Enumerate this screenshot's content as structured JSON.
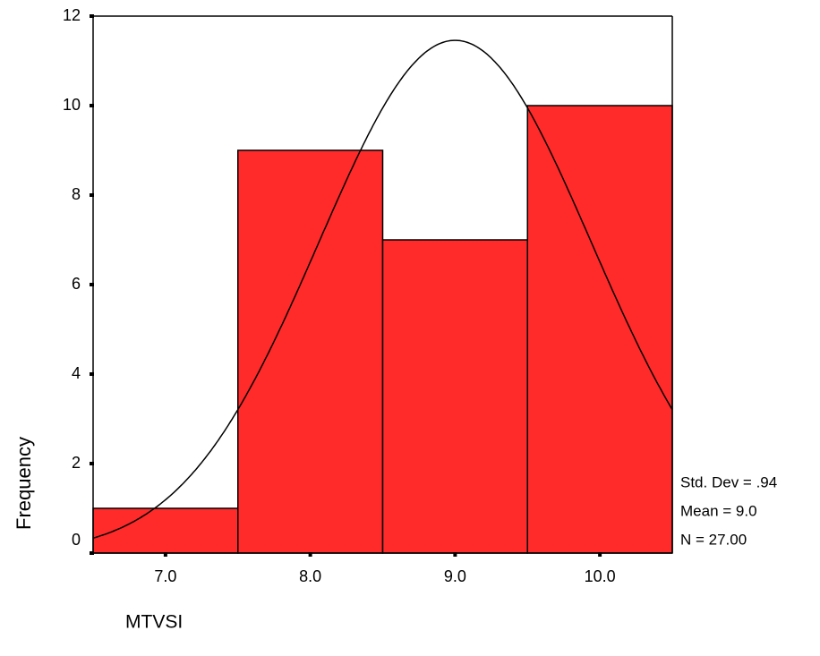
{
  "chart_data": {
    "type": "histogram",
    "x_label": "MTVSI",
    "y_label": "Frequency",
    "bins": [
      6.5,
      7.5,
      8.5,
      9.5,
      10.5
    ],
    "values": [
      1,
      9,
      7,
      10
    ],
    "color": "#ff2a2a",
    "xlim": [
      6.5,
      10.5
    ],
    "xticks": [
      {
        "value": 7,
        "label": "7.0"
      },
      {
        "value": 8,
        "label": "8.0"
      },
      {
        "value": 9,
        "label": "9.0"
      },
      {
        "value": 10,
        "label": "10.0"
      }
    ],
    "ylim": [
      0,
      12
    ],
    "yticks": [
      0,
      2,
      4,
      6,
      8,
      10,
      12
    ],
    "normal_curve": {
      "sd": 0.94,
      "mean": 9.0,
      "n": 27,
      "labels": [
        "Std. Dev = .94",
        "Mean = 9.0",
        "N = 27.00"
      ]
    }
  }
}
